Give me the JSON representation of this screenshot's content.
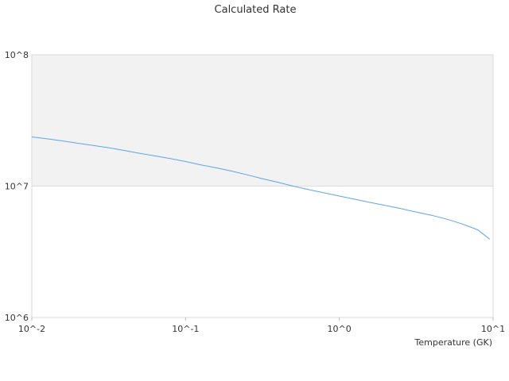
{
  "chart_data": {
    "type": "line",
    "title": "Calculated Rate",
    "xlabel": "Temperature (GK)",
    "ylabel": "",
    "x_scale": "log",
    "y_scale": "log",
    "xlim": [
      0.01,
      10
    ],
    "ylim": [
      1000000,
      100000000
    ],
    "x_ticks": [
      "10^-2",
      "10^-1",
      "10^0",
      "10^1"
    ],
    "y_ticks": [
      "10^6",
      "10^7",
      "10^8"
    ],
    "grid": true,
    "shaded_band": {
      "y_from": 10000000,
      "y_to": 100000000,
      "color": "#f2f2f2"
    },
    "series": [
      {
        "name": "",
        "color": "#5da5e8",
        "x": [
          0.01,
          0.0126,
          0.0158,
          0.02,
          0.0251,
          0.0316,
          0.0398,
          0.0501,
          0.0631,
          0.0794,
          0.1,
          0.126,
          0.158,
          0.2,
          0.251,
          0.316,
          0.398,
          0.501,
          0.631,
          0.794,
          1.0,
          1.26,
          1.58,
          2.0,
          2.51,
          3.16,
          3.98,
          5.01,
          6.31,
          7.94,
          9.5
        ],
        "y": [
          23700000,
          22900000,
          22100000,
          21200000,
          20400000,
          19600000,
          18700000,
          17800000,
          17000000,
          16200000,
          15400000,
          14500000,
          13800000,
          13000000,
          12200000,
          11400000,
          10700000,
          10000000,
          9400000,
          8900000,
          8400000,
          7950000,
          7520000,
          7120000,
          6750000,
          6350000,
          6000000,
          5600000,
          5150000,
          4650000,
          3950000
        ]
      }
    ]
  }
}
